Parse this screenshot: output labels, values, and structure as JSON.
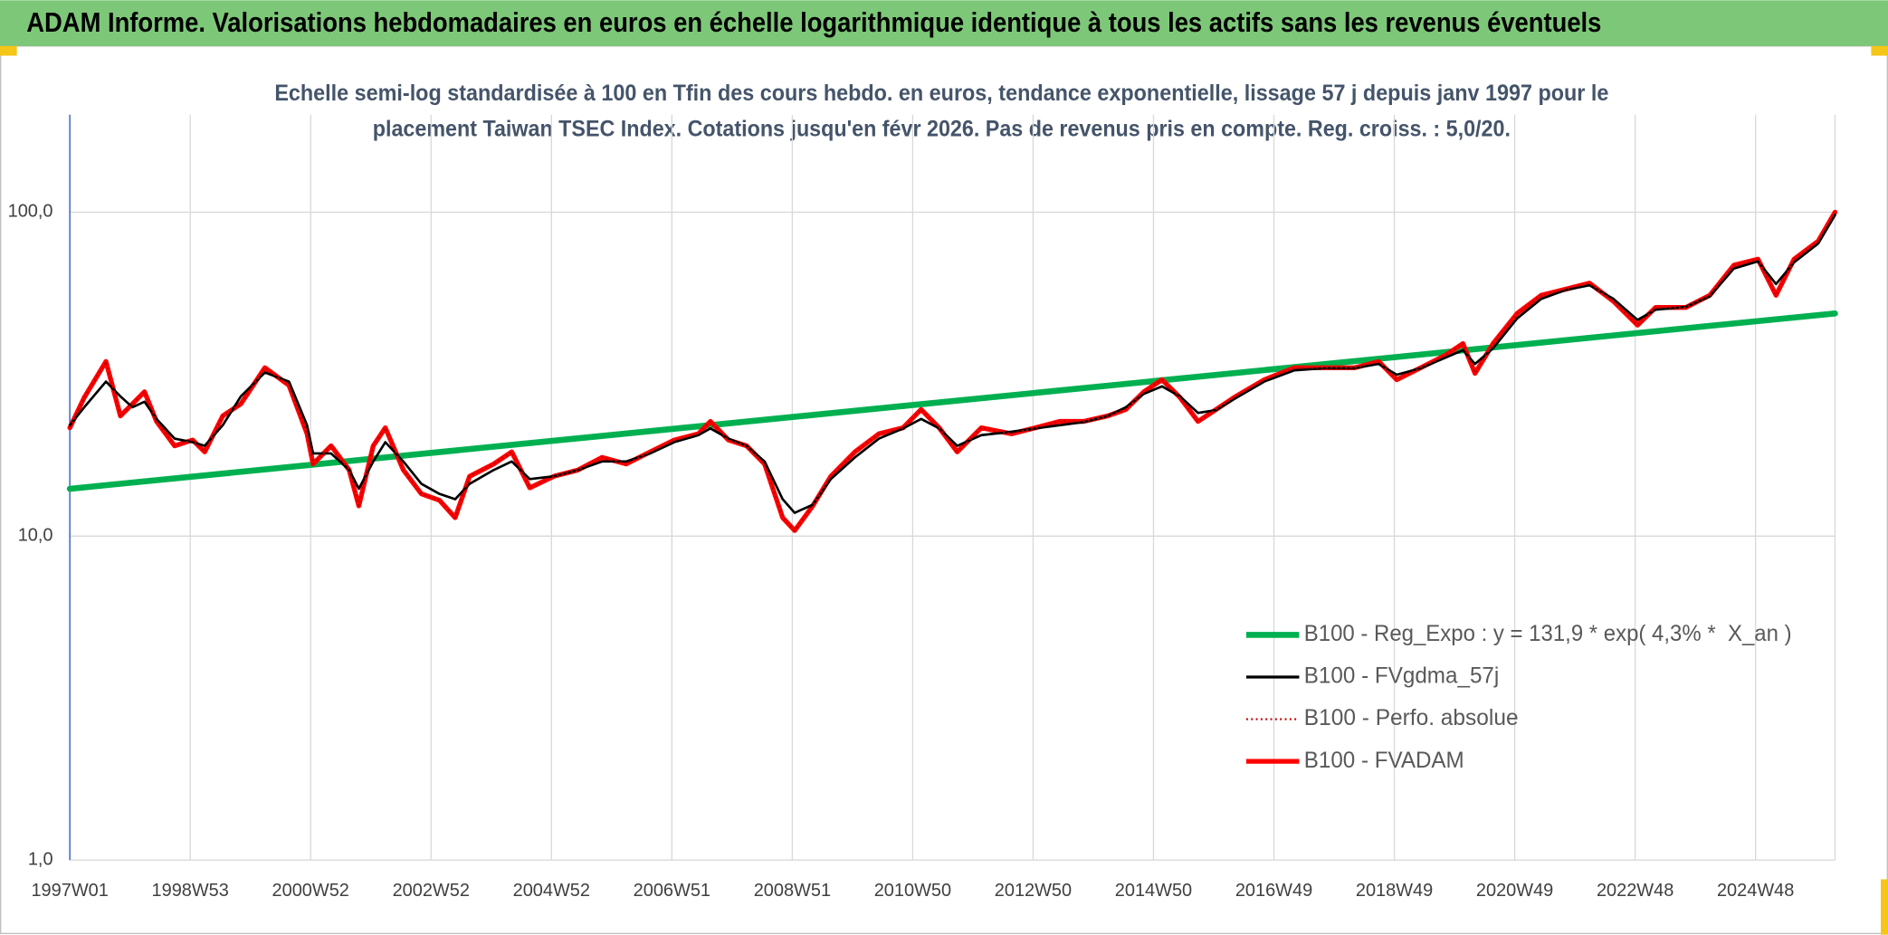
{
  "chart_data": {
    "type": "line",
    "title": "ADAM Informe. Valorisations hebdomadaires en euros en échelle logarithmique identique à tous les actifs sans les revenus éventuels",
    "subtitle": [
      "Echelle semi-log standardisée à 100 en Tfin des cours hebdo. en euros, tendance exponentielle, lissage 57 j depuis janv 1997 pour le",
      "placement Taiwan TSEC Index. Cotations jusqu'en févr 2026. Pas de revenus pris en compte. Reg. croiss. : 5,0/20."
    ],
    "log_scale": true,
    "grid": true,
    "legend": "bottom-right",
    "xlim": [
      1997.0,
      2026.32
    ],
    "xticks": [
      {
        "value": 1997,
        "label": "1997W01"
      },
      {
        "value": 1999,
        "label": "1998W53"
      },
      {
        "value": 2001,
        "label": "2000W52"
      },
      {
        "value": 2003,
        "label": "2002W52"
      },
      {
        "value": 2005,
        "label": "2004W52"
      },
      {
        "value": 2007,
        "label": "2006W51"
      },
      {
        "value": 2009,
        "label": "2008W51"
      },
      {
        "value": 2011,
        "label": "2010W50"
      },
      {
        "value": 2013,
        "label": "2012W50"
      },
      {
        "value": 2015,
        "label": "2014W50"
      },
      {
        "value": 2017,
        "label": "2016W49"
      },
      {
        "value": 2019,
        "label": "2018W49"
      },
      {
        "value": 2021,
        "label": "2020W49"
      },
      {
        "value": 2023,
        "label": "2022W48"
      },
      {
        "value": 2025,
        "label": "2024W48"
      }
    ],
    "ylim": [
      1,
      200
    ],
    "yticks": [
      {
        "value": 1,
        "label": "1,0"
      },
      {
        "value": 10,
        "label": "10,0"
      },
      {
        "value": 100,
        "label": "100,0"
      }
    ],
    "x": [
      1997.0,
      1997.24,
      1997.6,
      1997.84,
      1998.04,
      1998.24,
      1998.44,
      1998.74,
      1999.04,
      1999.24,
      1999.54,
      1999.84,
      2000.24,
      2000.64,
      2000.94,
      2001.04,
      2001.34,
      2001.64,
      2001.8,
      2002.04,
      2002.24,
      2002.54,
      2002.84,
      2003.14,
      2003.4,
      2003.64,
      2004.04,
      2004.34,
      2004.64,
      2005.04,
      2005.44,
      2005.84,
      2006.24,
      2006.64,
      2007.04,
      2007.44,
      2007.64,
      2007.94,
      2008.24,
      2008.54,
      2008.84,
      2009.04,
      2009.34,
      2009.64,
      2010.04,
      2010.44,
      2010.84,
      2011.14,
      2011.44,
      2011.74,
      2012.14,
      2012.64,
      2013.04,
      2013.44,
      2013.84,
      2014.24,
      2014.54,
      2014.84,
      2015.14,
      2015.44,
      2015.74,
      2016.04,
      2016.34,
      2016.84,
      2017.34,
      2017.84,
      2018.34,
      2018.74,
      2019.04,
      2019.44,
      2019.84,
      2020.14,
      2020.34,
      2020.64,
      2021.04,
      2021.44,
      2021.84,
      2022.24,
      2022.64,
      2023.04,
      2023.34,
      2023.84,
      2024.24,
      2024.64,
      2025.04,
      2025.34,
      2025.64,
      2026.04,
      2026.32
    ],
    "series": [
      {
        "name": "B100 - Reg_Expo : y = 131,9 * exp( 4,3% *  X_an )",
        "color": "#00b050",
        "linestyle": "solid",
        "x": [
          1997.0,
          2026.32
        ],
        "values": [
          14.0,
          48.7
        ]
      },
      {
        "name": "B100 - FVgdma_57j",
        "color": "#000000",
        "linestyle": "solid",
        "values": [
          22,
          25,
          30,
          27,
          25,
          26,
          23,
          20,
          19.5,
          19,
          22,
          27,
          32,
          30,
          22,
          18,
          18,
          16,
          14,
          17,
          19.5,
          17,
          14.5,
          13.5,
          13,
          14.5,
          16,
          17,
          15,
          15.3,
          16,
          17,
          17,
          18,
          19.5,
          20.5,
          21.5,
          20,
          19,
          17,
          13,
          11.8,
          12.5,
          15,
          17.5,
          20,
          21.5,
          23,
          21.5,
          19,
          20.5,
          21,
          21.5,
          22,
          22.5,
          23.5,
          25,
          27.5,
          29,
          27,
          24,
          24.5,
          26.5,
          30,
          32.5,
          33,
          33,
          34,
          31.5,
          33,
          35.5,
          37.5,
          34,
          38,
          47,
          54,
          57.5,
          59.5,
          54,
          46.5,
          50,
          51,
          55,
          67,
          70.5,
          60,
          70,
          80,
          98
        ]
      },
      {
        "name": "B100 - Perfo. absolue",
        "color": "#c00000",
        "linestyle": "dotted",
        "values": [
          21.6,
          26.8,
          34.6,
          23.5,
          25.6,
          27.9,
          22.6,
          19.0,
          19.8,
          18.2,
          23.5,
          25.6,
          33.1,
          29.2,
          20.7,
          16.7,
          19.0,
          16.0,
          12.4,
          19.0,
          21.6,
          16.0,
          13.5,
          12.9,
          11.4,
          15.3,
          16.7,
          18.2,
          14.1,
          15.3,
          16.0,
          17.5,
          16.7,
          18.2,
          19.8,
          20.7,
          22.6,
          19.8,
          19.0,
          16.7,
          11.4,
          10.4,
          12.4,
          15.3,
          18.2,
          20.7,
          21.6,
          24.6,
          21.6,
          18.2,
          21.6,
          20.7,
          21.6,
          22.6,
          22.6,
          23.5,
          24.6,
          27.9,
          30.4,
          26.8,
          22.6,
          24.6,
          26.8,
          30.4,
          33.1,
          33.1,
          33.1,
          34.6,
          30.4,
          33.1,
          36.1,
          39.3,
          31.8,
          39.3,
          48.7,
          55.4,
          57.8,
          60.4,
          53.1,
          44.8,
          50.8,
          50.8,
          55.4,
          68.6,
          71.6,
          55.4,
          71.6,
          81.4,
          100
        ]
      },
      {
        "name": "B100 - FVADAM",
        "color": "#ff0000",
        "linestyle": "solid",
        "values": [
          21.6,
          26.8,
          34.6,
          23.5,
          25.6,
          27.9,
          22.6,
          19.0,
          19.8,
          18.2,
          23.5,
          25.6,
          33.1,
          29.2,
          20.7,
          16.7,
          19.0,
          16.0,
          12.4,
          19.0,
          21.6,
          16.0,
          13.5,
          12.9,
          11.4,
          15.3,
          16.7,
          18.2,
          14.1,
          15.3,
          16.0,
          17.5,
          16.7,
          18.2,
          19.8,
          20.7,
          22.6,
          19.8,
          19.0,
          16.7,
          11.4,
          10.4,
          12.4,
          15.3,
          18.2,
          20.7,
          21.6,
          24.6,
          21.6,
          18.2,
          21.6,
          20.7,
          21.6,
          22.6,
          22.6,
          23.5,
          24.6,
          27.9,
          30.4,
          26.8,
          22.6,
          24.6,
          26.8,
          30.4,
          33.1,
          33.1,
          33.1,
          34.6,
          30.4,
          33.1,
          36.1,
          39.3,
          31.8,
          39.3,
          48.7,
          55.4,
          57.8,
          60.4,
          53.1,
          44.8,
          50.8,
          50.8,
          55.4,
          68.6,
          71.6,
          55.4,
          71.6,
          81.4,
          100
        ]
      }
    ]
  }
}
